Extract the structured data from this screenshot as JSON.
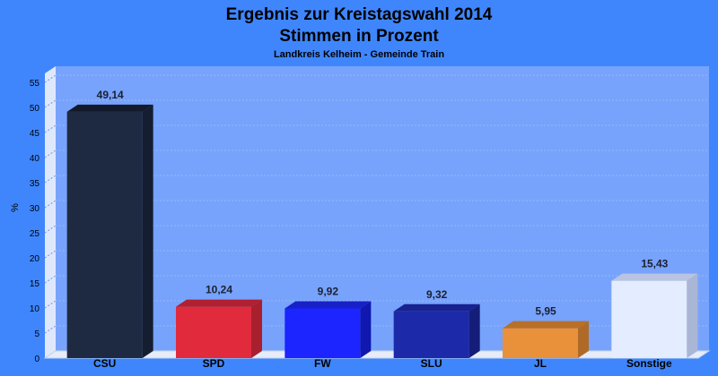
{
  "chart_data": {
    "type": "bar",
    "title": "Ergebnis zur Kreistagswahl 2014",
    "title_line2": "Stimmen in Prozent",
    "subtitle": "Landkreis Kelheim - Gemeinde Train",
    "ylabel": "%",
    "xlabel": "",
    "ylim": [
      0,
      55
    ],
    "yticks": [
      0,
      5,
      10,
      15,
      20,
      25,
      30,
      35,
      40,
      45,
      50,
      55
    ],
    "grid": true,
    "categories": [
      "CSU",
      "SPD",
      "FW",
      "SLU",
      "JL",
      "Sonstige"
    ],
    "values": [
      49.14,
      10.24,
      9.92,
      9.32,
      5.95,
      15.43
    ],
    "value_labels": [
      "49,14",
      "10,24",
      "9,92",
      "9,32",
      "5,95",
      "15,43"
    ],
    "colors": [
      "#1e2a42",
      "#e12a3c",
      "#1c24ff",
      "#1c29a8",
      "#e8903a",
      "#e4ecff"
    ],
    "side_colors": [
      "#151d30",
      "#a81f2e",
      "#1018b0",
      "#141d78",
      "#b06a28",
      "#aab6d6"
    ],
    "top_colors": [
      "#121a2b",
      "#b02030",
      "#1820c8",
      "#182290",
      "#b87028",
      "#b8c4e2"
    ],
    "background_color": "#3f86fd",
    "plot_color": "#77a3fc"
  }
}
